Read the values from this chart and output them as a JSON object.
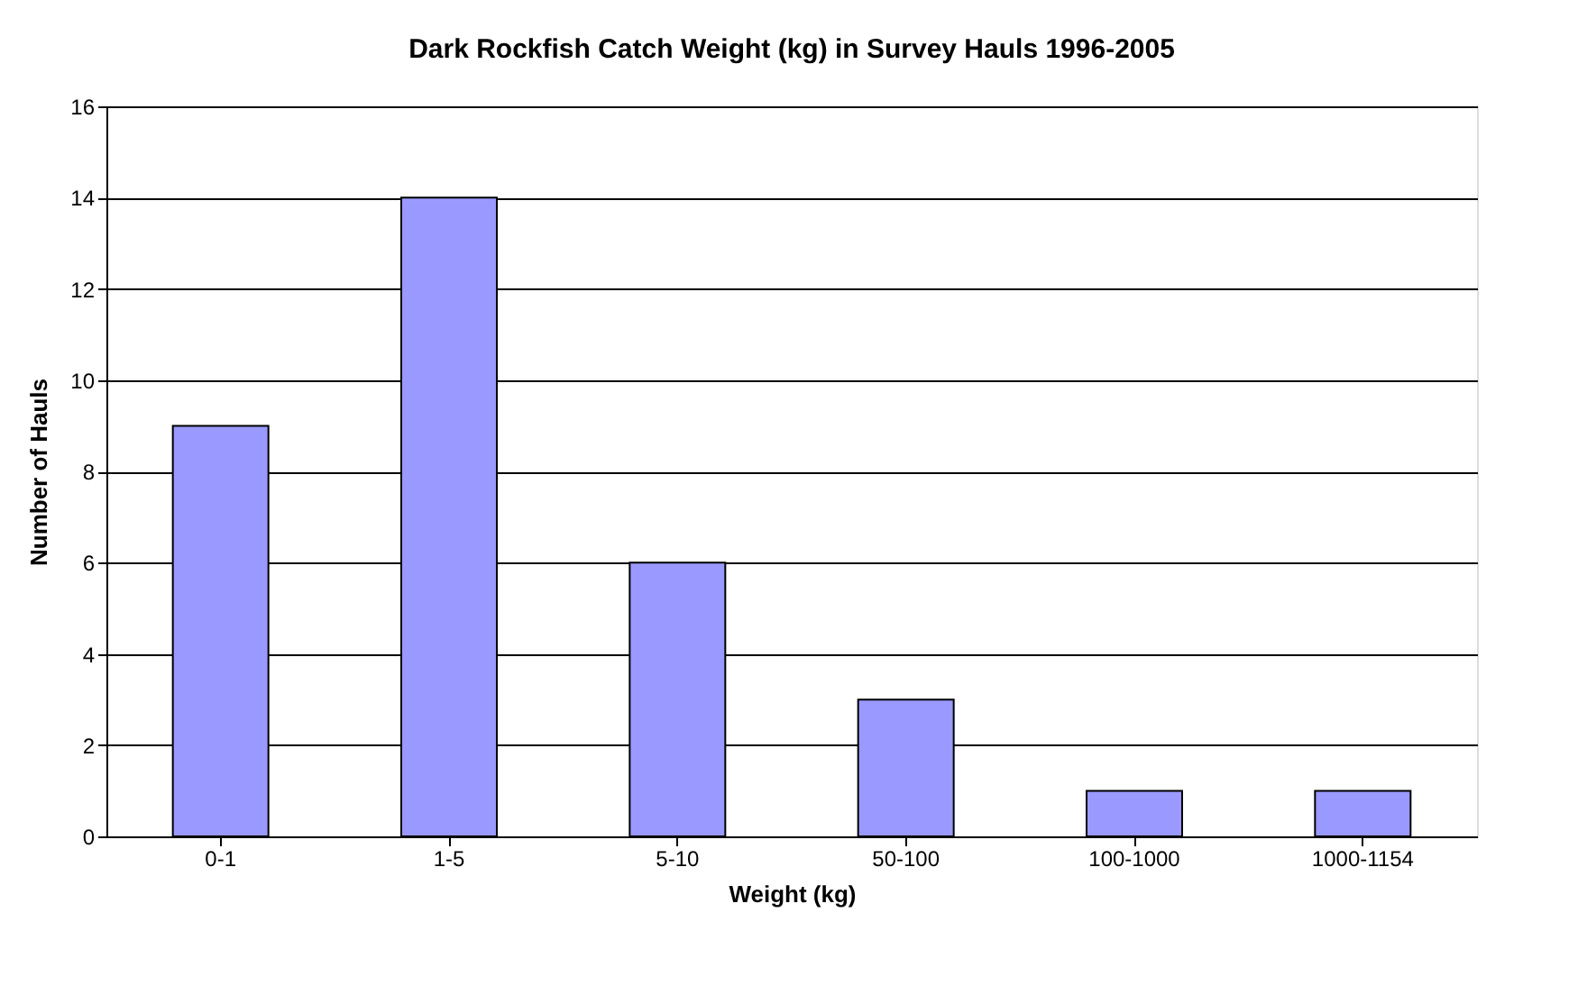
{
  "chart_data": {
    "type": "bar",
    "title": "Dark Rockfish Catch Weight (kg) in Survey Hauls 1996-2005",
    "xlabel": "Weight (kg)",
    "ylabel": "Number of Hauls",
    "categories": [
      "0-1",
      "1-5",
      "5-10",
      "50-100",
      "100-1000",
      "1000-1154"
    ],
    "values": [
      9,
      14,
      6,
      3,
      1,
      1
    ],
    "color": "#9999ff",
    "ylim": [
      0,
      16
    ],
    "yticks": [
      0,
      2,
      4,
      6,
      8,
      10,
      12,
      14,
      16
    ],
    "grid": "y"
  }
}
